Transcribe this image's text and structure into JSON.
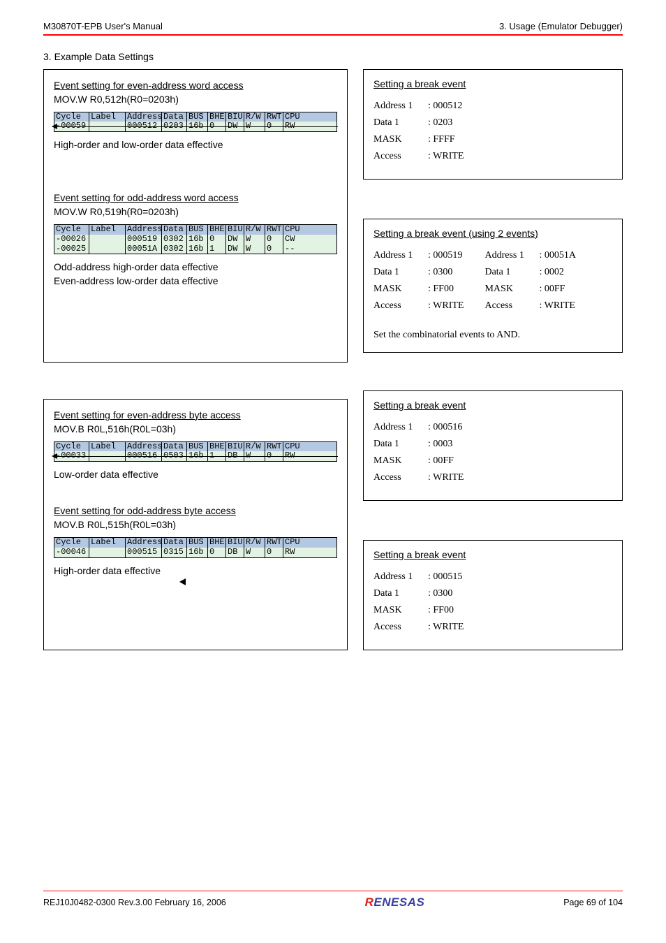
{
  "header": {
    "manual": "M30870T-EPB User's Manual",
    "section": "3. Usage (Emulator Debugger)"
  },
  "sectionTitle": "3. Example Data Settings",
  "colors": {
    "redLine": "#ff0000",
    "traceHeaderBg": "#b4c8e1",
    "traceRowBg": "#e3f3e3",
    "renesasBlue": "#3a3fa0",
    "renesasRed": "#d92020"
  },
  "traceColumns": [
    "Cycle",
    "Label",
    "Address",
    "Data",
    "BUS",
    "BHE",
    "BIU",
    "R/W",
    "RWT",
    "CPU"
  ],
  "panels": {
    "evenWord": {
      "title": "Event setting for even-address word access",
      "code": "MOV.W   R0,512h(R0=0203h)",
      "rows": [
        {
          "cycle": "-00059",
          "label": "",
          "address": "000512",
          "data": "0203",
          "bus": "16b",
          "bhe": "0",
          "biu": "DW",
          "rw": "W",
          "rwt": "0",
          "cpu": "RW",
          "strike": true
        }
      ],
      "note": "High-order and low-order data effective"
    },
    "oddWord": {
      "title": "Event setting for odd-address word access",
      "code": "MOV.W   R0,519h(R0=0203h)",
      "rows": [
        {
          "cycle": "-00026",
          "label": "",
          "address": "000519",
          "data": "0302",
          "bus": "16b",
          "bhe": "0",
          "biu": "DW",
          "rw": "W",
          "rwt": "0",
          "cpu": "CW"
        },
        {
          "cycle": "-00025",
          "label": "",
          "address": "00051A",
          "data": "0302",
          "bus": "16b",
          "bhe": "1",
          "biu": "DW",
          "rw": "W",
          "rwt": "0",
          "cpu": "--"
        }
      ],
      "note1": "Odd-address high-order data effective",
      "note2": "Even-address low-order data effective"
    },
    "evenByte": {
      "title": "Event setting for even-address byte access",
      "code": "MOV.B   R0L,516h(R0L=03h)",
      "rows": [
        {
          "cycle": "-00033",
          "label": "",
          "address": "000516",
          "data": "0503",
          "bus": "16b",
          "bhe": "1",
          "biu": "DB",
          "rw": "W",
          "rwt": "0",
          "cpu": "RW",
          "strike": true
        }
      ],
      "note": "Low-order data effective"
    },
    "oddByte": {
      "title": "Event setting for odd-address byte access",
      "code": "MOV.B   R0L,515h(R0L=03h)",
      "rows": [
        {
          "cycle": "-00046",
          "label": "",
          "address": "000515",
          "data": "0315",
          "bus": "16b",
          "bhe": "0",
          "biu": "DB",
          "rw": "W",
          "rwt": "0",
          "cpu": "RW"
        }
      ],
      "note": "High-order data effective"
    }
  },
  "breaks": {
    "b1": {
      "title": "Setting a break event",
      "rows": [
        {
          "k": "Address 1",
          "v": ": 000512"
        },
        {
          "k": "Data 1",
          "v": ": 0203"
        },
        {
          "k": "MASK",
          "v": ": FFFF"
        },
        {
          "k": "Access",
          "v": ": WRITE"
        }
      ]
    },
    "b2": {
      "title": "Setting a break event (using 2 events)",
      "left": [
        {
          "k": "Address 1",
          "v": ": 000519"
        },
        {
          "k": "Data 1",
          "v": ": 0300"
        },
        {
          "k": "MASK",
          "v": ": FF00"
        },
        {
          "k": "Access",
          "v": ": WRITE"
        }
      ],
      "right": [
        {
          "k": "Address 1",
          "v": ": 00051A"
        },
        {
          "k": "Data 1",
          "v": ": 0002"
        },
        {
          "k": "MASK",
          "v": ": 00FF"
        },
        {
          "k": "Access",
          "v": ": WRITE"
        }
      ],
      "note": "Set the combinatorial events to AND."
    },
    "b3": {
      "title": "Setting a break event",
      "rows": [
        {
          "k": "Address 1",
          "v": ": 000516"
        },
        {
          "k": "Data 1",
          "v": ": 0003"
        },
        {
          "k": "MASK",
          "v": ": 00FF"
        },
        {
          "k": "Access",
          "v": ": WRITE"
        }
      ]
    },
    "b4": {
      "title": "Setting a break event",
      "rows": [
        {
          "k": "Address 1",
          "v": ": 000515"
        },
        {
          "k": "Data 1",
          "v": ": 0300"
        },
        {
          "k": "MASK",
          "v": ": FF00"
        },
        {
          "k": "Access",
          "v": ": WRITE"
        }
      ]
    }
  },
  "footer": {
    "left": "REJ10J0482-0300   Rev.3.00   February 16, 2006",
    "logo1": "R",
    "logo2": "ENESAS",
    "right": "Page 69 of 104"
  }
}
